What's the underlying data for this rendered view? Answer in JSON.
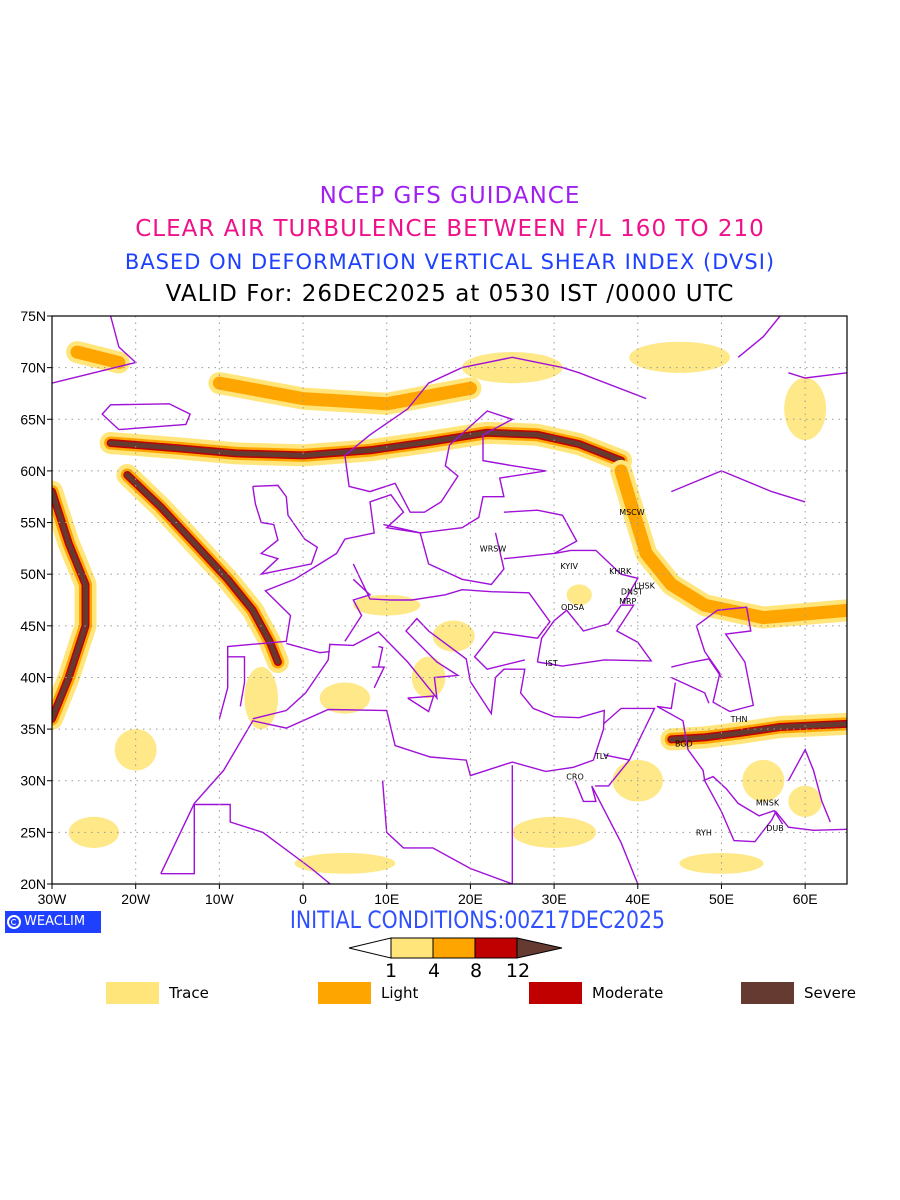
{
  "titles": {
    "line1": "NCEP GFS GUIDANCE",
    "line2": "CLEAR AIR TURBULENCE BETWEEN F/L 160 TO 210",
    "line3": "BASED ON DEFORMATION VERTICAL SHEAR INDEX (DVSI)",
    "line4": "VALID For: 26DEC2025 at 0530 IST /0000 UTC"
  },
  "initial_conditions": "INITIAL CONDITIONS:00Z17DEC2025",
  "logo": "WEACLIM",
  "map": {
    "lon_range": [
      -30,
      65
    ],
    "lat_range": [
      20,
      75
    ],
    "lon_ticks": [
      {
        "v": -30,
        "label": "30W"
      },
      {
        "v": -20,
        "label": "20W"
      },
      {
        "v": -10,
        "label": "10W"
      },
      {
        "v": 0,
        "label": "0"
      },
      {
        "v": 10,
        "label": "10E"
      },
      {
        "v": 20,
        "label": "20E"
      },
      {
        "v": 30,
        "label": "30E"
      },
      {
        "v": 40,
        "label": "40E"
      },
      {
        "v": 50,
        "label": "50E"
      },
      {
        "v": 60,
        "label": "60E"
      }
    ],
    "lat_ticks": [
      {
        "v": 20,
        "label": "20N"
      },
      {
        "v": 25,
        "label": "25N"
      },
      {
        "v": 30,
        "label": "30N"
      },
      {
        "v": 35,
        "label": "35N"
      },
      {
        "v": 40,
        "label": "40N"
      },
      {
        "v": 45,
        "label": "45N"
      },
      {
        "v": 50,
        "label": "50N"
      },
      {
        "v": 55,
        "label": "55N"
      },
      {
        "v": 60,
        "label": "60N"
      },
      {
        "v": 65,
        "label": "65N"
      },
      {
        "v": 70,
        "label": "70N"
      },
      {
        "v": 75,
        "label": "75N"
      }
    ],
    "stations": [
      {
        "name": "MSCW",
        "lon": 39.3,
        "lat": 56.0
      },
      {
        "name": "WRSW",
        "lon": 22.7,
        "lat": 52.5
      },
      {
        "name": "KYIV",
        "lon": 31.8,
        "lat": 50.8
      },
      {
        "name": "KHRK",
        "lon": 37.9,
        "lat": 50.3
      },
      {
        "name": "LHSK",
        "lon": 40.8,
        "lat": 48.9
      },
      {
        "name": "DNST",
        "lon": 39.3,
        "lat": 48.3
      },
      {
        "name": "MRP",
        "lon": 38.8,
        "lat": 47.4
      },
      {
        "name": "ODSA",
        "lon": 32.2,
        "lat": 46.8
      },
      {
        "name": "IST",
        "lon": 29.7,
        "lat": 41.4
      },
      {
        "name": "THN",
        "lon": 52.1,
        "lat": 36.0
      },
      {
        "name": "BGD",
        "lon": 45.5,
        "lat": 33.6
      },
      {
        "name": "TLV",
        "lon": 35.7,
        "lat": 32.4
      },
      {
        "name": "CRO",
        "lon": 32.5,
        "lat": 30.4
      },
      {
        "name": "MNSK",
        "lon": 55.5,
        "lat": 27.9
      },
      {
        "name": "RYH",
        "lon": 47.9,
        "lat": 25.0
      },
      {
        "name": "DUB",
        "lon": 56.4,
        "lat": 25.4
      }
    ],
    "turbulence_bands": [
      {
        "name": "scandinavian-jet",
        "max_level": "Severe",
        "points": [
          [
            -23,
            62.7
          ],
          [
            -15,
            62.2
          ],
          [
            -8,
            61.7
          ],
          [
            0,
            61.5
          ],
          [
            8,
            62.0
          ],
          [
            15,
            62.8
          ],
          [
            22,
            63.7
          ],
          [
            28,
            63.5
          ],
          [
            33,
            62.6
          ],
          [
            38,
            61
          ]
        ]
      },
      {
        "name": "atlantic-nw-se",
        "max_level": "Severe",
        "points": [
          [
            -21,
            59.6
          ],
          [
            -17,
            56.5
          ],
          [
            -13,
            53
          ],
          [
            -9,
            49.5
          ],
          [
            -6,
            46.5
          ],
          [
            -4,
            43.5
          ],
          [
            -3,
            41.5
          ]
        ]
      },
      {
        "name": "west-atlantic",
        "max_level": "Severe",
        "points": [
          [
            -30,
            36
          ],
          [
            -28,
            40
          ],
          [
            -26,
            45
          ],
          [
            -26,
            49
          ],
          [
            -28,
            53
          ],
          [
            -30,
            58
          ]
        ]
      },
      {
        "name": "moscow-arc",
        "max_level": "Light",
        "points": [
          [
            38,
            60
          ],
          [
            39.5,
            56
          ],
          [
            41,
            52
          ],
          [
            44,
            49
          ],
          [
            48,
            47
          ],
          [
            55,
            45.8
          ],
          [
            65,
            46.5
          ]
        ]
      },
      {
        "name": "iran",
        "max_level": "Severe",
        "points": [
          [
            44,
            34
          ],
          [
            48,
            34.2
          ],
          [
            52,
            34.6
          ],
          [
            57,
            35.2
          ],
          [
            65,
            35.5
          ]
        ]
      },
      {
        "name": "norwegian-sea",
        "max_level": "Light",
        "points": [
          [
            -10,
            68.5
          ],
          [
            0,
            67
          ],
          [
            10,
            66.5
          ],
          [
            20,
            68
          ]
        ]
      },
      {
        "name": "iceland-north",
        "max_level": "Light",
        "points": [
          [
            -27,
            71.5
          ],
          [
            -22,
            70.5
          ]
        ]
      }
    ],
    "trace_areas": [
      [
        -5,
        38,
        4,
        6
      ],
      [
        5,
        38,
        6,
        3
      ],
      [
        15,
        40,
        4,
        4
      ],
      [
        30,
        25,
        10,
        3
      ],
      [
        40,
        30,
        6,
        4
      ],
      [
        55,
        30,
        5,
        4
      ],
      [
        5,
        22,
        12,
        2
      ],
      [
        50,
        22,
        10,
        2
      ],
      [
        25,
        70,
        12,
        3
      ],
      [
        45,
        71,
        12,
        3
      ],
      [
        60,
        66,
        5,
        6
      ],
      [
        -20,
        33,
        5,
        4
      ],
      [
        -25,
        25,
        6,
        3
      ],
      [
        10,
        47,
        8,
        2
      ],
      [
        18,
        44,
        5,
        3
      ],
      [
        33,
        48,
        3,
        2
      ],
      [
        60,
        28,
        4,
        3
      ]
    ]
  },
  "colorbar": {
    "ticks": [
      "1",
      "4",
      "8",
      "12"
    ],
    "colors": {
      "trace": "#ffe57a",
      "light": "#ffa500",
      "moderate": "#c00000",
      "severe": "#653a30"
    }
  },
  "legend": [
    {
      "label": "Trace",
      "color": "#ffe57a"
    },
    {
      "label": "Light",
      "color": "#ffa500"
    },
    {
      "label": "Moderate",
      "color": "#c00000"
    },
    {
      "label": "Severe",
      "color": "#653a30"
    }
  ]
}
